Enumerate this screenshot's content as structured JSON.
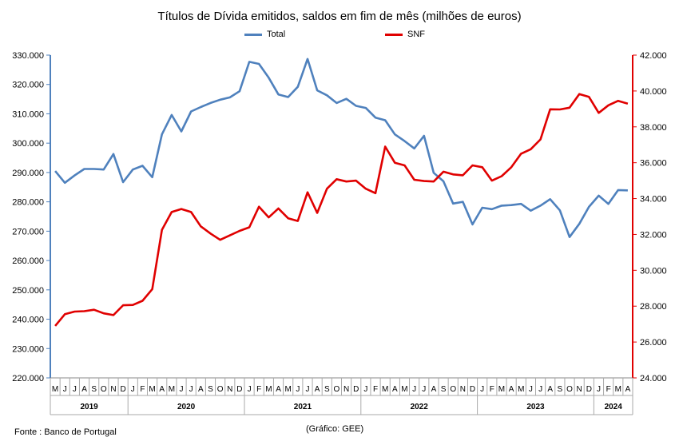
{
  "chart_data": {
    "type": "line",
    "title": "Títulos de Dívida emitidos, saldos em fim de mês  (milhões de euros)",
    "source": "Fonte : Banco de Portugal",
    "credit": "(Gráfico: GEE)",
    "month_labels": [
      "M",
      "J",
      "J",
      "A",
      "S",
      "O",
      "N",
      "D",
      "J",
      "F",
      "M",
      "A",
      "M",
      "J",
      "J",
      "A",
      "S",
      "O",
      "N",
      "D",
      "J",
      "F",
      "M",
      "A",
      "M",
      "J",
      "J",
      "A",
      "S",
      "O",
      "N",
      "D",
      "J",
      "F",
      "M",
      "A",
      "M",
      "J",
      "J",
      "A",
      "S",
      "O",
      "N",
      "D",
      "J",
      "F",
      "M",
      "A",
      "M",
      "J",
      "J",
      "A",
      "S",
      "O",
      "N",
      "D",
      "J",
      "F",
      "M",
      "A"
    ],
    "year_groups": [
      {
        "label": "2019",
        "count": 8
      },
      {
        "label": "2020",
        "count": 12
      },
      {
        "label": "2021",
        "count": 12
      },
      {
        "label": "2022",
        "count": 12
      },
      {
        "label": "2023",
        "count": 12
      },
      {
        "label": "2024",
        "count": 4
      }
    ],
    "left_axis": {
      "min": 220000,
      "max": 330000,
      "step": 10000,
      "tick_labels": [
        "220.000",
        "230.000",
        "240.000",
        "250.000",
        "260.000",
        "270.000",
        "280.000",
        "290.000",
        "300.000",
        "310.000",
        "320.000",
        "330.000"
      ]
    },
    "right_axis": {
      "min": 24000,
      "max": 42000,
      "step": 2000,
      "tick_labels": [
        "24.000",
        "26.000",
        "28.000",
        "30.000",
        "32.000",
        "34.000",
        "36.000",
        "38.000",
        "40.000",
        "42.000"
      ]
    },
    "series": [
      {
        "name": "Total",
        "axis": "left",
        "color": "#4f81bd",
        "values": [
          290500,
          286500,
          289000,
          291200,
          291200,
          291000,
          296300,
          286700,
          291000,
          292300,
          288400,
          303000,
          309600,
          304000,
          310800,
          312300,
          313700,
          314800,
          315600,
          317700,
          327700,
          327000,
          322300,
          316600,
          315700,
          319200,
          328700,
          318000,
          316300,
          313700,
          315100,
          312700,
          312000,
          308700,
          307800,
          303000,
          300700,
          298200,
          302500,
          289900,
          287000,
          279400,
          280000,
          272300,
          278000,
          277500,
          278700,
          278900,
          279300,
          277000,
          278700,
          280900,
          277100,
          268000,
          272500,
          278300,
          282100,
          279300,
          284000,
          283900
        ],
        "count_note": ""
      },
      {
        "name": "SNF",
        "axis": "right",
        "color": "#e00000",
        "values": [
          26900,
          27550,
          27700,
          27720,
          27800,
          27600,
          27500,
          28050,
          28070,
          28300,
          28950,
          32250,
          33250,
          33420,
          33250,
          32450,
          32050,
          31700,
          31950,
          32200,
          32400,
          33550,
          32950,
          33450,
          32900,
          32750,
          34350,
          33200,
          34550,
          35080,
          34950,
          35000,
          34550,
          34300,
          36900,
          36000,
          35850,
          35050,
          34980,
          34950,
          35500,
          35350,
          35300,
          35850,
          35750,
          35000,
          35250,
          35750,
          36500,
          36750,
          37300,
          38980,
          38970,
          39070,
          39830,
          39670,
          38780,
          39200,
          39450,
          39290
        ]
      }
    ]
  }
}
